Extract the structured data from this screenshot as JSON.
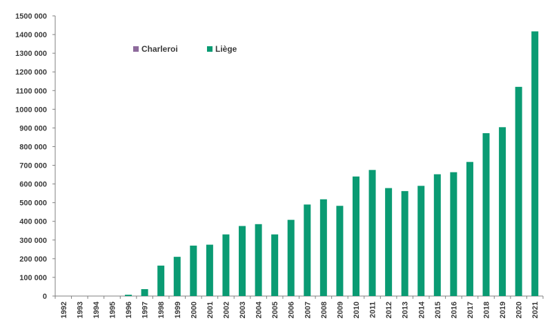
{
  "chart_data": {
    "type": "bar",
    "title": "",
    "xlabel": "",
    "ylabel": "",
    "categories": [
      "1992",
      "1993",
      "1994",
      "1995",
      "1996",
      "1997",
      "1998",
      "1999",
      "2000",
      "2001",
      "2002",
      "2003",
      "2004",
      "2005",
      "2006",
      "2007",
      "2008",
      "2009",
      "2010",
      "2011",
      "2012",
      "2013",
      "2014",
      "2015",
      "2016",
      "2017",
      "2018",
      "2019",
      "2020",
      "2021"
    ],
    "series": [
      {
        "name": "Charleroi",
        "color": "#8e6b9c",
        "values": [
          0,
          0,
          0,
          0,
          0,
          0,
          0,
          0,
          0,
          0,
          0,
          0,
          0,
          0,
          0,
          0,
          0,
          0,
          0,
          0,
          0,
          0,
          0,
          0,
          0,
          0,
          0,
          0,
          0,
          0
        ]
      },
      {
        "name": "Liège",
        "color": "#0a9b73",
        "values": [
          0,
          0,
          0,
          0,
          7000,
          37000,
          163000,
          210000,
          270000,
          275000,
          330000,
          375000,
          385000,
          330000,
          408000,
          490000,
          518000,
          483000,
          640000,
          675000,
          578000,
          562000,
          590000,
          652000,
          663000,
          718000,
          872000,
          904000,
          1120000,
          1417000
        ]
      }
    ],
    "ylim": [
      0,
      1500000
    ],
    "y_ticks": [
      "0",
      "100 000",
      "200 000",
      "300 000",
      "400 000",
      "500 000",
      "600 000",
      "700 000",
      "800 000",
      "900 000",
      "1000 000",
      "1100 000",
      "1200 000",
      "1300 000",
      "1400 000",
      "1500 000"
    ],
    "y_tick_step": 100000,
    "grid": false,
    "legend_position": "top-left"
  }
}
